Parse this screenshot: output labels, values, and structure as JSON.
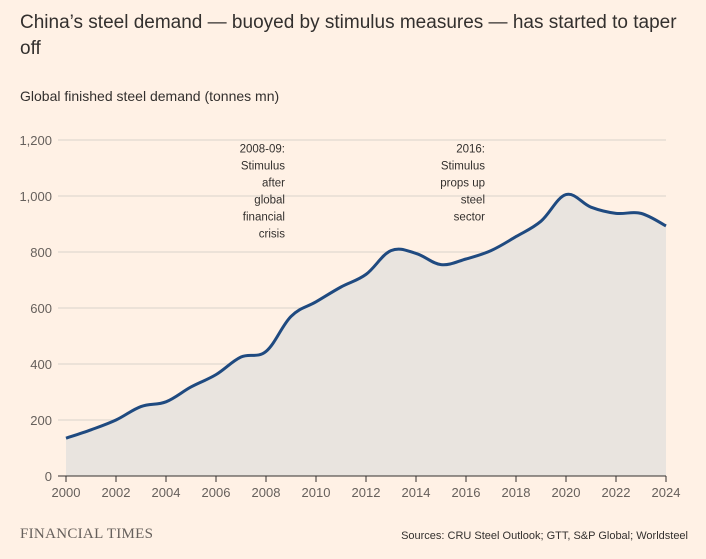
{
  "header": {
    "title": "China’s steel demand — buoyed by stimulus measures — has started to taper off",
    "subtitle": "Global finished steel demand (tonnes mn)"
  },
  "footer": {
    "brand": "FINANCIAL TIMES",
    "source": "Sources: CRU Steel Outlook; GTT, S&P Global; Worldsteel"
  },
  "colors": {
    "background": "#fff1e5",
    "line": "#1f4a80",
    "area": "#e9e4df",
    "grid": "#d9d2ca",
    "text": "#33302e"
  },
  "chart_data": {
    "type": "area",
    "title": "China’s steel demand — buoyed by stimulus measures — has started to taper off",
    "ylabel": "Global finished steel demand (tonnes mn)",
    "xlabel": "",
    "xlim": [
      2000,
      2024
    ],
    "ylim": [
      0,
      1200
    ],
    "yticks": [
      0,
      200,
      400,
      600,
      800,
      1000,
      1200
    ],
    "ytick_labels": [
      "0",
      "200",
      "400",
      "600",
      "800",
      "1,000",
      "1,200"
    ],
    "xticks": [
      2000,
      2002,
      2004,
      2006,
      2008,
      2010,
      2012,
      2014,
      2016,
      2018,
      2020,
      2022,
      2024
    ],
    "xtick_labels": [
      "2000",
      "2002",
      "2004",
      "2006",
      "2008",
      "2010",
      "2012",
      "2014",
      "2016",
      "2018",
      "2020",
      "2022",
      "2024"
    ],
    "grid": true,
    "series": [
      {
        "name": "Global finished steel demand",
        "x": [
          2000,
          2001,
          2002,
          2003,
          2004,
          2005,
          2006,
          2007,
          2008,
          2009,
          2010,
          2011,
          2012,
          2013,
          2014,
          2015,
          2016,
          2017,
          2018,
          2019,
          2020,
          2021,
          2022,
          2023,
          2024
        ],
        "values": [
          135,
          165,
          200,
          248,
          265,
          318,
          362,
          425,
          445,
          570,
          622,
          675,
          720,
          805,
          795,
          755,
          775,
          805,
          855,
          910,
          1005,
          960,
          938,
          938,
          893
        ]
      }
    ],
    "annotations": [
      {
        "x": 2008,
        "y_top": 1155,
        "lines": [
          "2008-09:",
          "Stimulus",
          "after",
          "global",
          "financial",
          "crisis"
        ]
      },
      {
        "x": 2016,
        "y_top": 1155,
        "lines": [
          "2016:",
          "Stimulus",
          "props up",
          "steel",
          "sector"
        ]
      }
    ]
  }
}
